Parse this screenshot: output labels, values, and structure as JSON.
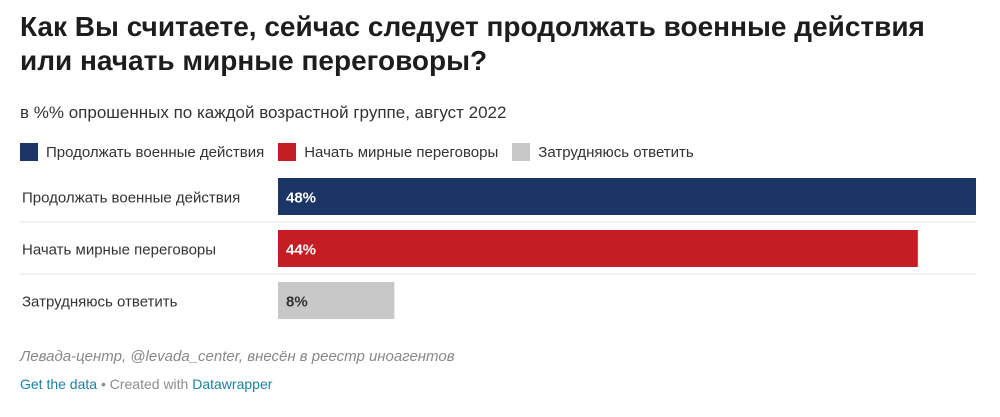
{
  "title": "Как Вы считаете, сейчас следует продолжать военные действия или начать мирные переговоры?",
  "subtitle": "в %% опрошенных по каждой возрастной группе, август 2022",
  "legend": [
    {
      "label": "Продолжать военные действия",
      "color": "#1b3567"
    },
    {
      "label": "Начать мирные переговоры",
      "color": "#c41e24"
    },
    {
      "label": "Затрудняюсь ответить",
      "color": "#c8c8c8"
    }
  ],
  "chart_data": {
    "type": "bar",
    "orientation": "horizontal",
    "categories": [
      "Продолжать военные действия",
      "Начать мирные переговоры",
      "Затрудняюсь ответить"
    ],
    "values": [
      48,
      44,
      8
    ],
    "value_labels": [
      "48%",
      "44%",
      "8%"
    ],
    "colors": [
      "#1b3567",
      "#c41e24",
      "#c8c8c8"
    ],
    "label_colors": [
      "#ffffff",
      "#ffffff",
      "#333333"
    ],
    "xlim": [
      0,
      48
    ]
  },
  "source": "Левада-центр, @levada_center, внесён в реестр иноагентов",
  "footer": {
    "get_data": "Get the data",
    "separator": " • Created with ",
    "datawrapper": "Datawrapper"
  }
}
